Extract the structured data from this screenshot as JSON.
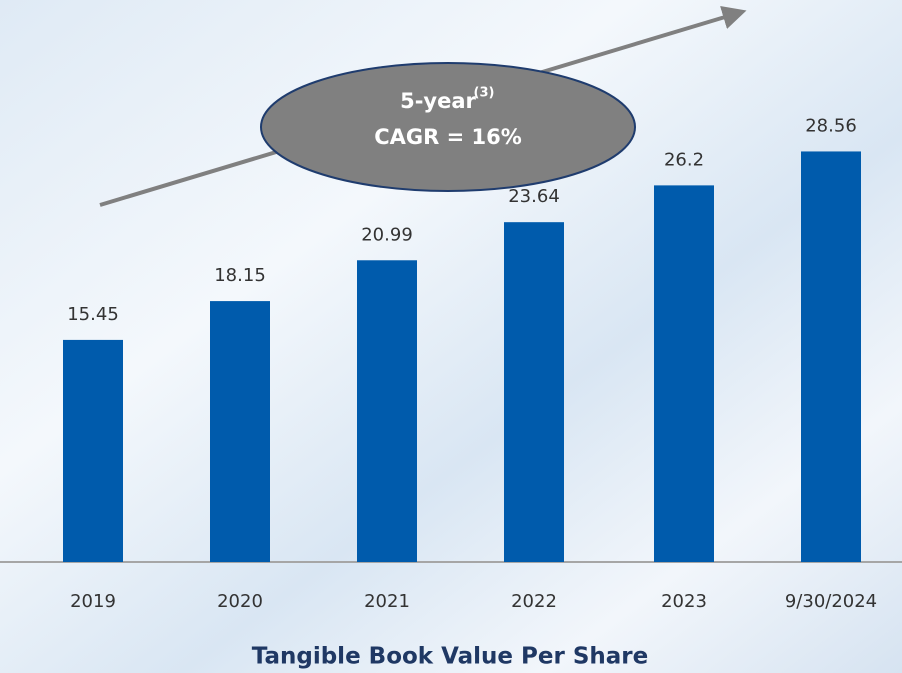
{
  "chart_data": {
    "type": "bar",
    "title": "Tangible Book Value Per Share",
    "categories": [
      "2019",
      "2020",
      "2021",
      "2022",
      "2023",
      "9/30/2024"
    ],
    "values": [
      15.45,
      18.15,
      20.99,
      23.64,
      26.2,
      28.56
    ],
    "color": "#005bac",
    "ylim": [
      0,
      32
    ],
    "annotation": {
      "text": "5-year",
      "superscript": "(3)",
      "line2": "CAGR = 16%"
    }
  }
}
